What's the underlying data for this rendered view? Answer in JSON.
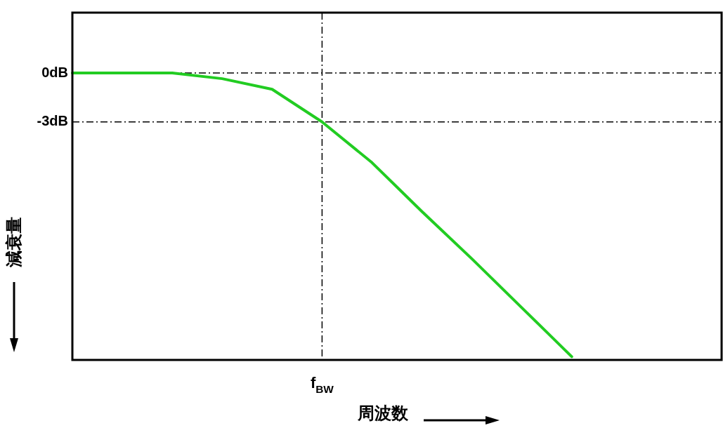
{
  "chart_data": {
    "type": "line",
    "categories": [
      null,
      null,
      null,
      null,
      null,
      "f$_{BW}$",
      null,
      null,
      null,
      null,
      null,
      null,
      null,
      null
    ],
    "series": [
      {
        "color": "#22cc22",
        "values": [
          0,
          0,
          0,
          -0.35,
          -1.0,
          -3,
          -5.5,
          -8.5,
          -11.4,
          -14.4,
          -17.4,
          null,
          null,
          null
        ]
      }
    ],
    "ylim": [
      -17.6,
      3.7
    ],
    "yticks": [
      {
        "value": 0,
        "label": "0dB"
      },
      {
        "value": -3,
        "label": "-3dB"
      }
    ],
    "ref_lines": [
      {
        "axis": "y",
        "value": 0,
        "line_style": "dashed",
        "color": "#000000"
      },
      {
        "axis": "y",
        "value": -3,
        "line_style": "dashed",
        "color": "#000000"
      },
      {
        "axis": "x",
        "value": "f$_{BW}$",
        "line_style": "dashed",
        "color": "#000000"
      }
    ],
    "xlabel": "周波数",
    "ylabel": "減衰量",
    "legend": false,
    "marker": "none",
    "line_style": "solid",
    "grid": false
  }
}
